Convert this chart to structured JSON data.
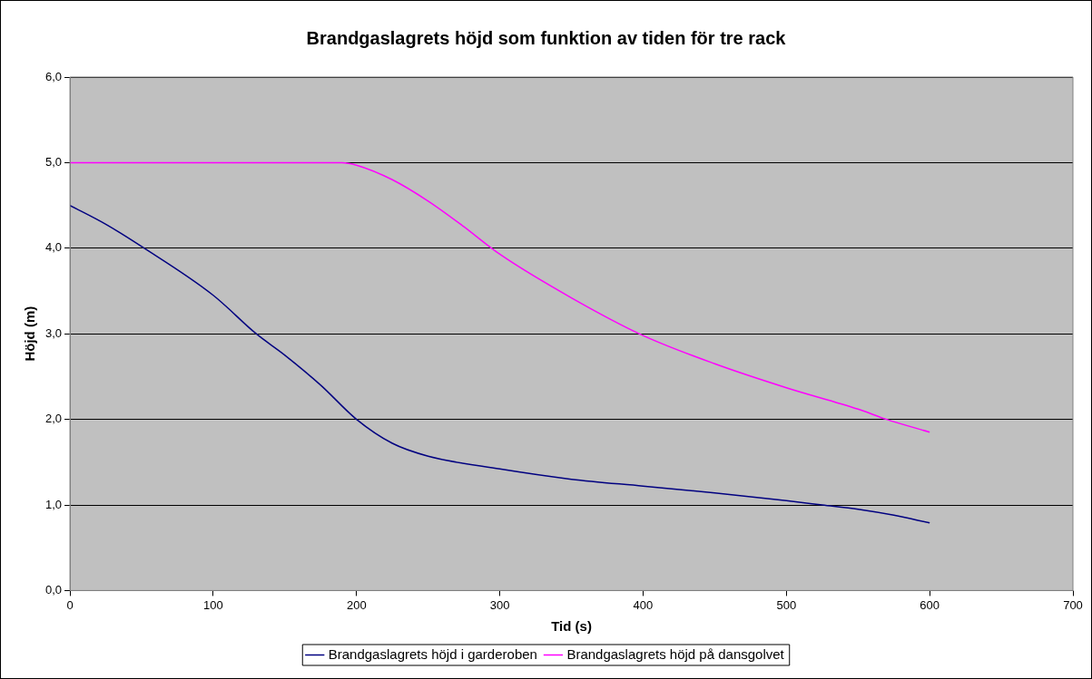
{
  "chart_data": {
    "type": "line",
    "title": "Brandgaslagrets höjd som funktion av tiden för tre rack",
    "xlabel": "Tid (s)",
    "ylabel": "Höjd (m)",
    "xlim": [
      0,
      700
    ],
    "xticks": [
      0,
      100,
      200,
      300,
      400,
      500,
      600,
      700
    ],
    "ylim": [
      0,
      6
    ],
    "yticks": [
      {
        "value": 0,
        "label": "0,0"
      },
      {
        "value": 1,
        "label": "1,0"
      },
      {
        "value": 2,
        "label": "2,0"
      },
      {
        "value": 3,
        "label": "3,0"
      },
      {
        "value": 4,
        "label": "4,0"
      },
      {
        "value": 5,
        "label": "5,0"
      },
      {
        "value": 6,
        "label": "6,0"
      }
    ],
    "grid": "y",
    "legend": "bottom",
    "marker": "none",
    "line_style": "solid",
    "series": [
      {
        "name": "Brandgaslagrets höjd i garderoben",
        "color": "#000080",
        "x": [
          0,
          25,
          50,
          100,
          130,
          150,
          175,
          200,
          225,
          250,
          300,
          350,
          400,
          450,
          500,
          525,
          550,
          575,
          600
        ],
        "values": [
          4.5,
          4.28,
          4.02,
          3.45,
          3.0,
          2.75,
          2.4,
          2.0,
          1.72,
          1.57,
          1.42,
          1.3,
          1.22,
          1.14,
          1.05,
          1.0,
          0.95,
          0.88,
          0.79
        ]
      },
      {
        "name": "Brandgaslagrets höjd på dansgolvet",
        "color": "#ff00ff",
        "x": [
          0,
          100,
          190,
          200,
          225,
          250,
          275,
          300,
          350,
          400,
          450,
          500,
          550,
          570,
          600
        ],
        "values": [
          5.0,
          5.0,
          5.0,
          4.97,
          4.8,
          4.55,
          4.25,
          3.93,
          3.42,
          2.98,
          2.65,
          2.37,
          2.12,
          2.0,
          1.85
        ]
      }
    ]
  }
}
